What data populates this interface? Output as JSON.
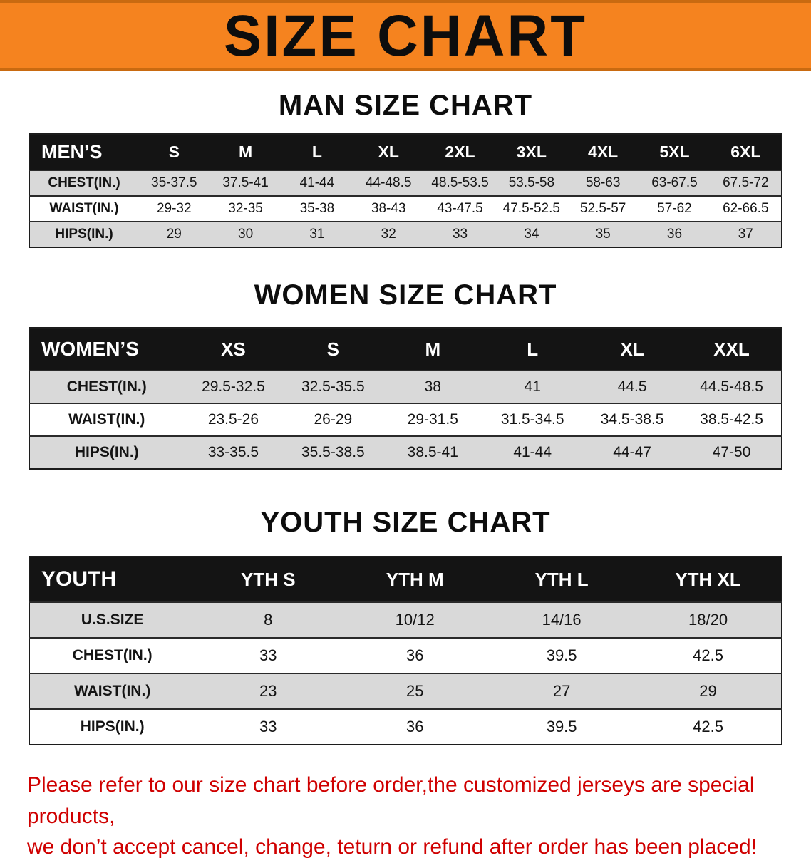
{
  "banner": {
    "title": "SIZE CHART"
  },
  "colors": {
    "banner_bg": "#f5831f",
    "table_header_bg": "#141414",
    "row_alt_bg": "#d9d9d9",
    "footer_text": "#cf0000"
  },
  "sections": [
    {
      "heading": "MAN SIZE CHART",
      "header": [
        "MEN’S",
        "S",
        "M",
        "L",
        "XL",
        "2XL",
        "3XL",
        "4XL",
        "5XL",
        "6XL"
      ],
      "rows": [
        [
          "CHEST(IN.)",
          "35-37.5",
          "37.5-41",
          "41-44",
          "44-48.5",
          "48.5-53.5",
          "53.5-58",
          "58-63",
          "63-67.5",
          "67.5-72"
        ],
        [
          "WAIST(IN.)",
          "29-32",
          "32-35",
          "35-38",
          "38-43",
          "43-47.5",
          "47.5-52.5",
          "52.5-57",
          "57-62",
          "62-66.5"
        ],
        [
          "HIPS(IN.)",
          "29",
          "30",
          "31",
          "32",
          "33",
          "34",
          "35",
          "36",
          "37"
        ]
      ]
    },
    {
      "heading": "WOMEN SIZE CHART",
      "header": [
        "WOMEN’S",
        "XS",
        "S",
        "M",
        "L",
        "XL",
        "XXL"
      ],
      "rows": [
        [
          "CHEST(IN.)",
          "29.5-32.5",
          "32.5-35.5",
          "38",
          "41",
          "44.5",
          "44.5-48.5"
        ],
        [
          "WAIST(IN.)",
          "23.5-26",
          "26-29",
          "29-31.5",
          "31.5-34.5",
          "34.5-38.5",
          "38.5-42.5"
        ],
        [
          "HIPS(IN.)",
          "33-35.5",
          "35.5-38.5",
          "38.5-41",
          "41-44",
          "44-47",
          "47-50"
        ]
      ]
    },
    {
      "heading": "YOUTH SIZE CHART",
      "header": [
        "YOUTH",
        "YTH S",
        "YTH M",
        "YTH L",
        "YTH XL"
      ],
      "rows": [
        [
          "U.S.SIZE",
          "8",
          "10/12",
          "14/16",
          "18/20"
        ],
        [
          "CHEST(IN.)",
          "33",
          "36",
          "39.5",
          "42.5"
        ],
        [
          "WAIST(IN.)",
          "23",
          "25",
          "27",
          "29"
        ],
        [
          "HIPS(IN.)",
          "33",
          "36",
          "39.5",
          "42.5"
        ]
      ]
    }
  ],
  "footer": {
    "line1": "Please refer to our size chart before order,the customized jerseys are special products,",
    "line2": "we don’t accept cancel, change, teturn or refund after order has been placed!"
  }
}
